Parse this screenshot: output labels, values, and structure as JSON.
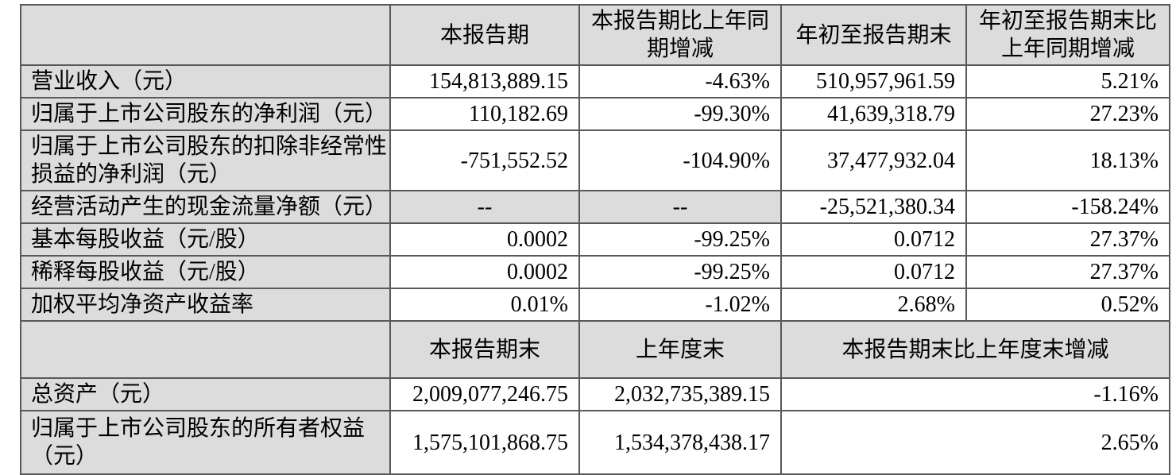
{
  "colors": {
    "cell_shade": "#dcdcdc",
    "border": "#595959",
    "page_background": "#ffffff"
  },
  "table": {
    "period_headers": {
      "corner": "",
      "current_period": "本报告期",
      "current_period_yoy": "本报告期比上年同期增减",
      "ytd": "年初至报告期末",
      "ytd_yoy": "年初至报告期末比上年同期增减"
    },
    "period_rows": [
      {
        "label": "营业收入（元）",
        "current_period": "154,813,889.15",
        "current_period_yoy": "-4.63%",
        "ytd": "510,957,961.59",
        "ytd_yoy": "5.21%"
      },
      {
        "label": "归属于上市公司股东的净利润（元）",
        "current_period": "110,182.69",
        "current_period_yoy": "-99.30%",
        "ytd": "41,639,318.79",
        "ytd_yoy": "27.23%"
      },
      {
        "label": "归属于上市公司股东的扣除非经常性损益的净利润（元）",
        "current_period": "-751,552.52",
        "current_period_yoy": "-104.90%",
        "ytd": "37,477,932.04",
        "ytd_yoy": "18.13%"
      },
      {
        "label": "经营活动产生的现金流量净额（元）",
        "current_period": "--",
        "current_period_yoy": "--",
        "ytd": "-25,521,380.34",
        "ytd_yoy": "-158.24%"
      },
      {
        "label": "基本每股收益（元/股）",
        "current_period": "0.0002",
        "current_period_yoy": "-99.25%",
        "ytd": "0.0712",
        "ytd_yoy": "27.37%"
      },
      {
        "label": "稀释每股收益（元/股）",
        "current_period": "0.0002",
        "current_period_yoy": "-99.25%",
        "ytd": "0.0712",
        "ytd_yoy": "27.37%"
      },
      {
        "label": "加权平均净资产收益率",
        "current_period": "0.01%",
        "current_period_yoy": "-1.02%",
        "ytd": "2.68%",
        "ytd_yoy": "0.52%"
      }
    ],
    "balance_headers": {
      "corner": "",
      "current_period_end": "本报告期末",
      "prior_year_end": "上年度末",
      "period_end_change": "本报告期末比上年度末增减"
    },
    "balance_rows": [
      {
        "label": "总资产（元）",
        "current_period_end": "2,009,077,246.75",
        "prior_year_end": "2,032,735,389.15",
        "period_end_change": "-1.16%"
      },
      {
        "label": "归属于上市公司股东的所有者权益（元）",
        "current_period_end": "1,575,101,868.75",
        "prior_year_end": "1,534,378,438.17",
        "period_end_change": "2.65%"
      }
    ]
  }
}
